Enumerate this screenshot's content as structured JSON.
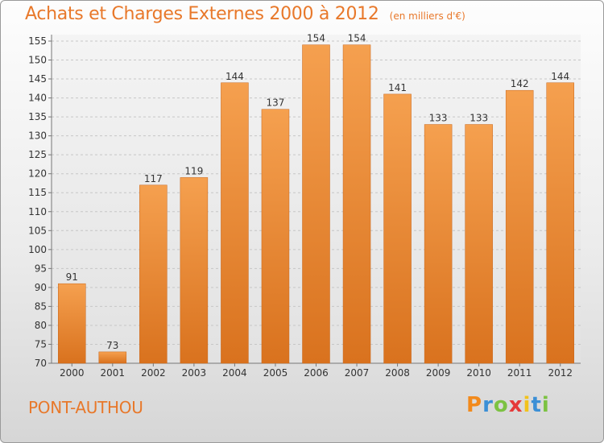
{
  "header": {
    "title": "Achats et Charges Externes 2000 à 2012",
    "unit_note": "(en milliers d'€)"
  },
  "location": "PONT-AUTHOU",
  "brand": {
    "letters": [
      "P",
      "r",
      "o",
      "x",
      "i",
      "t",
      "i"
    ],
    "colors": [
      "#f28a1c",
      "#3b8fd6",
      "#7cc242",
      "#e53a3a",
      "#f2c21c",
      "#3b8fd6",
      "#7cc242"
    ]
  },
  "colors": {
    "bar": "#f0913a",
    "title": "#e8782a"
  },
  "chart_data": {
    "type": "bar",
    "categories": [
      "2000",
      "2001",
      "2002",
      "2003",
      "2004",
      "2005",
      "2006",
      "2007",
      "2008",
      "2009",
      "2010",
      "2011",
      "2012"
    ],
    "values": [
      91,
      73,
      117,
      119,
      144,
      137,
      154,
      154,
      141,
      133,
      133,
      142,
      144
    ],
    "title": "Achats et Charges Externes 2000 à 2012",
    "ylim": [
      70,
      155
    ],
    "yticks": [
      70,
      75,
      80,
      85,
      90,
      95,
      100,
      105,
      110,
      115,
      120,
      125,
      130,
      135,
      140,
      145,
      150,
      155
    ],
    "grid": true
  }
}
